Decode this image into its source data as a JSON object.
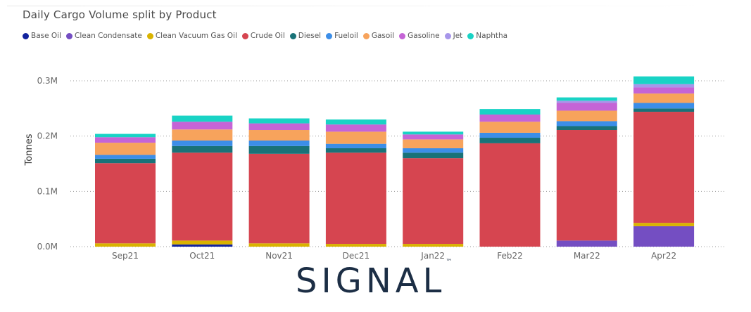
{
  "chart_data": {
    "type": "bar",
    "stacked": true,
    "title": "Daily Cargo Volume split by Product",
    "xlabel": "",
    "ylabel": "Tonnes",
    "ylim": [
      0,
      0.3
    ],
    "yticks": [
      0,
      0.1,
      0.2,
      0.3
    ],
    "ytick_labels": [
      "0.0M",
      "0.1M",
      "0.2M",
      "0.3M"
    ],
    "grid": true,
    "legend_position": "top-left",
    "categories": [
      "Sep21",
      "Oct21",
      "Nov21",
      "Dec21",
      "Jan22",
      "Feb22",
      "Mar22",
      "Apr22"
    ],
    "series": [
      {
        "name": "Base Oil",
        "color": "#12239E",
        "values": [
          0.0,
          0.004,
          0.0,
          0.0,
          0.0,
          0.0,
          0.0,
          0.0
        ]
      },
      {
        "name": "Clean Condensate",
        "color": "#744EC2",
        "values": [
          0.0,
          0.0,
          0.0,
          0.0,
          0.0,
          0.0,
          0.011,
          0.037
        ]
      },
      {
        "name": "Clean Vacuum Gas Oil",
        "color": "#D9B300",
        "values": [
          0.006,
          0.007,
          0.006,
          0.005,
          0.005,
          0.0,
          0.0,
          0.006
        ]
      },
      {
        "name": "Crude Oil",
        "color": "#D64550",
        "values": [
          0.145,
          0.159,
          0.162,
          0.165,
          0.155,
          0.187,
          0.2,
          0.201
        ]
      },
      {
        "name": "Diesel",
        "color": "#197278",
        "values": [
          0.008,
          0.012,
          0.014,
          0.008,
          0.01,
          0.01,
          0.007,
          0.006
        ]
      },
      {
        "name": "Fueloil",
        "color": "#3C8EE8",
        "values": [
          0.007,
          0.01,
          0.01,
          0.008,
          0.008,
          0.009,
          0.009,
          0.01
        ]
      },
      {
        "name": "Gasoil",
        "color": "#F7A35C",
        "values": [
          0.022,
          0.02,
          0.019,
          0.022,
          0.016,
          0.02,
          0.019,
          0.017
        ]
      },
      {
        "name": "Gasoline",
        "color": "#C564D6",
        "values": [
          0.01,
          0.014,
          0.012,
          0.013,
          0.009,
          0.013,
          0.014,
          0.011
        ]
      },
      {
        "name": "Jet",
        "color": "#A796EA",
        "values": [
          0.0,
          0.0,
          0.0,
          0.0,
          0.0,
          0.0,
          0.004,
          0.006
        ]
      },
      {
        "name": "Naphtha",
        "color": "#19D3C5",
        "values": [
          0.006,
          0.011,
          0.009,
          0.009,
          0.005,
          0.01,
          0.006,
          0.014
        ]
      }
    ]
  },
  "branding": {
    "name": "SIGNAL",
    "trademark": "™"
  }
}
